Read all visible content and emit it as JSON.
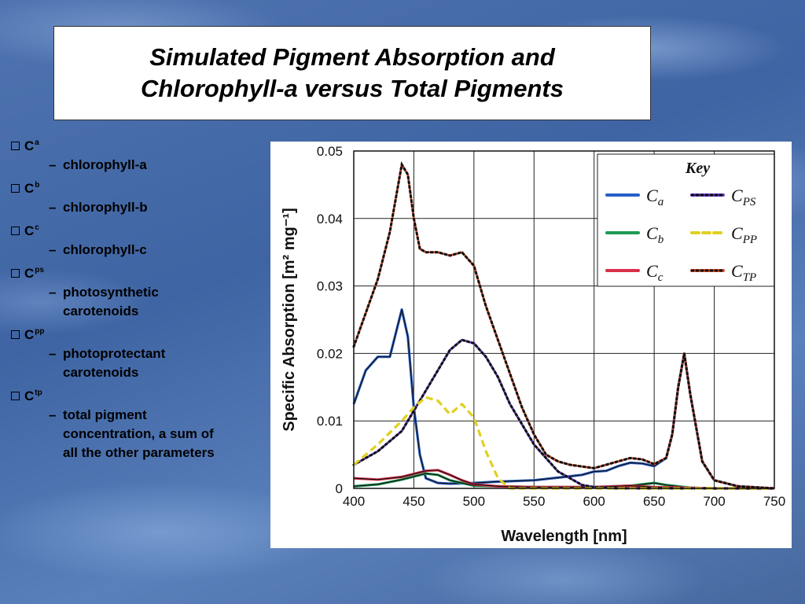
{
  "slide": {
    "title_line1": "Simulated Pigment Absorption and",
    "title_line2": "Chlorophyll-a versus Total Pigments"
  },
  "bullets": [
    {
      "symbol": "C",
      "sub": "a",
      "desc": "chlorophyll-a"
    },
    {
      "symbol": "C",
      "sub": "b",
      "desc": "chlorophyll-b"
    },
    {
      "symbol": "C",
      "sub": "c",
      "desc": "chlorophyll-c"
    },
    {
      "symbol": "C",
      "sub": "ps",
      "desc_lines": [
        "photosynthetic",
        "carotenoids"
      ]
    },
    {
      "symbol": "C",
      "sub": "pp",
      "desc_lines": [
        "photoprotectant",
        "carotenoids"
      ]
    },
    {
      "symbol": "C",
      "sub": "tp",
      "desc_lines": [
        "total pigment",
        "concentration, a sum of",
        "all the other parameters"
      ]
    }
  ],
  "chart_data": {
    "type": "line",
    "xlabel": "Wavelength [nm]",
    "ylabel": "Specific Absorption [m² mg⁻¹]",
    "xlim": [
      400,
      750
    ],
    "ylim": [
      0,
      0.05
    ],
    "x_ticks": [
      "400",
      "450",
      "500",
      "550",
      "600",
      "650",
      "700",
      "750"
    ],
    "y_ticks": [
      "0",
      "0.01",
      "0.02",
      "0.03",
      "0.04",
      "0.05"
    ],
    "grid": true,
    "legend_title": "Key",
    "legend_position": "top-right",
    "series": [
      {
        "name": "Ca",
        "sym": "C",
        "sub": "a",
        "color": "#2a5fc8",
        "style": "solid",
        "x": [
          400,
          410,
          420,
          430,
          440,
          445,
          450,
          455,
          460,
          470,
          480,
          500,
          520,
          550,
          580,
          590,
          600,
          610,
          620,
          630,
          640,
          650,
          660,
          665,
          670,
          675,
          680,
          690,
          700,
          720,
          750
        ],
        "y": [
          0.0125,
          0.0175,
          0.0195,
          0.0195,
          0.0265,
          0.0225,
          0.012,
          0.005,
          0.0015,
          0.0008,
          0.0007,
          0.0008,
          0.001,
          0.0012,
          0.0018,
          0.002,
          0.0025,
          0.0026,
          0.0033,
          0.0038,
          0.0037,
          0.0033,
          0.0045,
          0.008,
          0.015,
          0.02,
          0.014,
          0.004,
          0.0012,
          0.0003,
          0
        ]
      },
      {
        "name": "Cb",
        "sym": "C",
        "sub": "b",
        "color": "#1e9a55",
        "style": "solid",
        "x": [
          400,
          420,
          440,
          460,
          470,
          480,
          500,
          550,
          600,
          630,
          650,
          660,
          680,
          700,
          750
        ],
        "y": [
          0.0003,
          0.0006,
          0.0013,
          0.0022,
          0.002,
          0.0012,
          0.0004,
          0.0002,
          0.0002,
          0.0004,
          0.0008,
          0.0005,
          0.0001,
          0,
          0
        ]
      },
      {
        "name": "Cc",
        "sym": "C",
        "sub": "c",
        "color": "#d8304a",
        "style": "solid",
        "x": [
          400,
          420,
          440,
          460,
          470,
          480,
          490,
          500,
          520,
          550,
          600,
          630,
          650,
          700,
          750
        ],
        "y": [
          0.0015,
          0.0013,
          0.0017,
          0.0026,
          0.0027,
          0.002,
          0.0012,
          0.0006,
          0.0003,
          0.0002,
          0.0002,
          0.0004,
          0.0002,
          0,
          0
        ]
      },
      {
        "name": "Cps",
        "sym": "C",
        "sub": "PS",
        "color": "#6a3cd8",
        "style": "dotted",
        "x": [
          400,
          420,
          440,
          460,
          470,
          480,
          490,
          500,
          510,
          520,
          530,
          550,
          570,
          590,
          600,
          620,
          650,
          750
        ],
        "y": [
          0.0035,
          0.0055,
          0.0085,
          0.0145,
          0.0175,
          0.0205,
          0.022,
          0.0215,
          0.0195,
          0.0165,
          0.0125,
          0.0065,
          0.0025,
          0.0005,
          0.0002,
          0,
          0,
          0
        ]
      },
      {
        "name": "Cpp",
        "sym": "C",
        "sub": "PP",
        "color": "#e0d020",
        "style": "dashed",
        "x": [
          400,
          420,
          440,
          450,
          460,
          470,
          480,
          490,
          500,
          510,
          520,
          530,
          550,
          750
        ],
        "y": [
          0.0035,
          0.0065,
          0.01,
          0.012,
          0.0135,
          0.013,
          0.011,
          0.0125,
          0.0105,
          0.0055,
          0.0015,
          0,
          0,
          0
        ]
      },
      {
        "name": "Ctp",
        "sym": "C",
        "sub": "TP",
        "color": "#e5502a",
        "style": "dotted",
        "x": [
          400,
          410,
          420,
          430,
          440,
          445,
          450,
          455,
          460,
          470,
          480,
          490,
          500,
          510,
          520,
          530,
          540,
          550,
          560,
          570,
          580,
          600,
          620,
          630,
          640,
          650,
          660,
          665,
          670,
          675,
          680,
          690,
          700,
          720,
          750
        ],
        "y": [
          0.021,
          0.026,
          0.031,
          0.038,
          0.048,
          0.0465,
          0.04,
          0.0355,
          0.035,
          0.035,
          0.0345,
          0.035,
          0.033,
          0.027,
          0.022,
          0.017,
          0.012,
          0.008,
          0.005,
          0.004,
          0.0035,
          0.003,
          0.004,
          0.0045,
          0.0043,
          0.0036,
          0.0045,
          0.008,
          0.015,
          0.02,
          0.014,
          0.004,
          0.0012,
          0.0003,
          0
        ]
      }
    ]
  }
}
